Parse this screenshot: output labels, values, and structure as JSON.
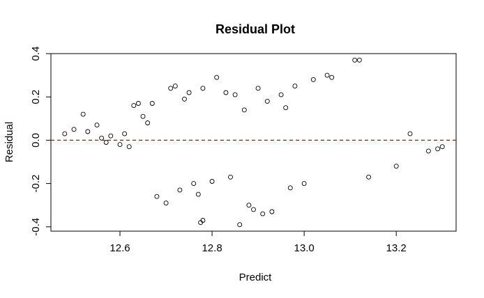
{
  "chart_data": {
    "type": "scatter",
    "title": "Residual Plot",
    "xlabel": "Predict",
    "ylabel": "Residual",
    "xlim": [
      12.45,
      13.33
    ],
    "ylim": [
      -0.42,
      0.4
    ],
    "x_ticks": [
      12.6,
      12.8,
      13.0,
      13.2
    ],
    "x_tick_labels": [
      "12.6",
      "12.8",
      "13.0",
      "13.2"
    ],
    "y_ticks": [
      -0.4,
      -0.2,
      0.0,
      0.2,
      0.4
    ],
    "y_tick_labels": [
      "-0.4",
      "-0.2",
      "0.0",
      "0.2",
      "0.4"
    ],
    "reference_line": {
      "y": 0.0,
      "style": "dashed",
      "color": "#cc0000"
    },
    "marker": {
      "shape": "open-circle",
      "color": "#000000"
    },
    "grid": false,
    "legend": "none",
    "series": [
      {
        "points": [
          [
            12.48,
            0.03
          ],
          [
            12.5,
            0.05
          ],
          [
            12.52,
            0.12
          ],
          [
            12.53,
            0.04
          ],
          [
            12.55,
            0.07
          ],
          [
            12.56,
            0.01
          ],
          [
            12.57,
            -0.01
          ],
          [
            12.58,
            0.02
          ],
          [
            12.6,
            -0.02
          ],
          [
            12.61,
            0.03
          ],
          [
            12.62,
            -0.03
          ],
          [
            12.63,
            0.16
          ],
          [
            12.64,
            0.17
          ],
          [
            12.65,
            0.11
          ],
          [
            12.66,
            0.08
          ],
          [
            12.67,
            0.17
          ],
          [
            12.68,
            -0.26
          ],
          [
            12.7,
            -0.29
          ],
          [
            12.71,
            0.24
          ],
          [
            12.72,
            0.25
          ],
          [
            12.73,
            -0.23
          ],
          [
            12.74,
            0.19
          ],
          [
            12.75,
            0.22
          ],
          [
            12.76,
            -0.2
          ],
          [
            12.77,
            -0.25
          ],
          [
            12.775,
            -0.38
          ],
          [
            12.78,
            -0.37
          ],
          [
            12.78,
            0.24
          ],
          [
            12.8,
            -0.19
          ],
          [
            12.81,
            0.29
          ],
          [
            12.83,
            0.22
          ],
          [
            12.84,
            -0.17
          ],
          [
            12.85,
            0.21
          ],
          [
            12.86,
            -0.39
          ],
          [
            12.87,
            0.14
          ],
          [
            12.88,
            -0.3
          ],
          [
            12.89,
            -0.32
          ],
          [
            12.9,
            0.24
          ],
          [
            12.91,
            -0.34
          ],
          [
            12.92,
            0.18
          ],
          [
            12.93,
            -0.33
          ],
          [
            12.95,
            0.21
          ],
          [
            12.96,
            0.15
          ],
          [
            12.97,
            -0.22
          ],
          [
            12.98,
            0.25
          ],
          [
            13.0,
            -0.2
          ],
          [
            13.02,
            0.28
          ],
          [
            13.05,
            0.3
          ],
          [
            13.06,
            0.29
          ],
          [
            13.11,
            0.37
          ],
          [
            13.12,
            0.37
          ],
          [
            13.14,
            -0.17
          ],
          [
            13.2,
            -0.12
          ],
          [
            13.23,
            0.03
          ],
          [
            13.27,
            -0.05
          ],
          [
            13.29,
            -0.04
          ],
          [
            13.3,
            -0.03
          ]
        ]
      }
    ]
  }
}
